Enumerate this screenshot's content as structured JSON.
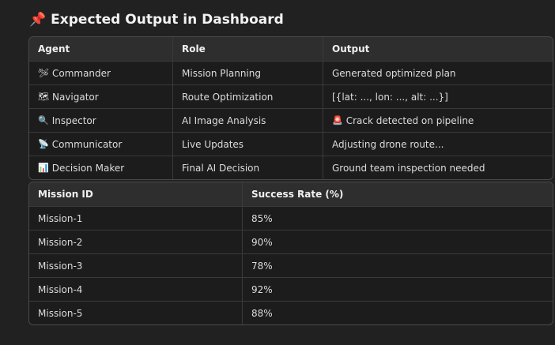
{
  "heading": {
    "icon": "📌",
    "title": "Expected Output in Dashboard"
  },
  "agents_table": {
    "headers": [
      "Agent",
      "Role",
      "Output"
    ],
    "rows": [
      {
        "icon": "🛩",
        "agent": "Commander",
        "role": "Mission Planning",
        "output_icon": "",
        "output": "Generated optimized plan"
      },
      {
        "icon": "🗺",
        "agent": "Navigator",
        "role": "Route Optimization",
        "output_icon": "",
        "output": "[{lat: ..., lon: ..., alt: ...}]"
      },
      {
        "icon": "🔍",
        "agent": "Inspector",
        "role": "AI Image Analysis",
        "output_icon": "🚨",
        "output": "Crack detected on pipeline"
      },
      {
        "icon": "📡",
        "agent": "Communicator",
        "role": "Live Updates",
        "output_icon": "",
        "output": "Adjusting drone route..."
      },
      {
        "icon": "📊",
        "agent": "Decision Maker",
        "role": "Final AI Decision",
        "output_icon": "",
        "output": "Ground team inspection needed"
      }
    ]
  },
  "missions_table": {
    "headers": [
      "Mission ID",
      "Success Rate (%)"
    ],
    "rows": [
      {
        "id": "Mission-1",
        "rate": "85%"
      },
      {
        "id": "Mission-2",
        "rate": "90%"
      },
      {
        "id": "Mission-3",
        "rate": "78%"
      },
      {
        "id": "Mission-4",
        "rate": "92%"
      },
      {
        "id": "Mission-5",
        "rate": "88%"
      }
    ]
  }
}
